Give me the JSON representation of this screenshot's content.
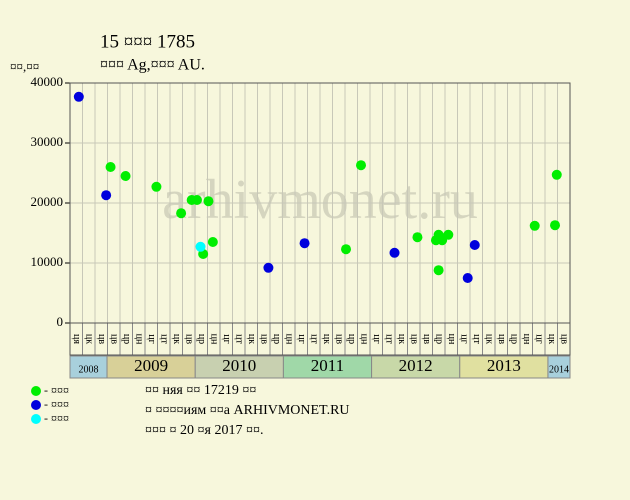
{
  "chart_data": {
    "type": "scatter",
    "title": "15 ¤¤¤ 1785",
    "subtitle": "¤¤¤ Ag,¤¤¤ AU.",
    "y_label": "¤¤,¤¤",
    "watermark": "arhivmonet.ru",
    "xlim": [
      2008.58,
      2014.25
    ],
    "ylim": [
      0,
      40000
    ],
    "yticks": [
      0,
      10000,
      20000,
      30000,
      40000
    ],
    "year_bounds": [
      2009,
      2010,
      2011,
      2012,
      2013,
      2014
    ],
    "year_labels": [
      "2008",
      "2009",
      "2010",
      "2011",
      "2012",
      "2013",
      "2014"
    ],
    "year_colors": [
      "#a8d0dc",
      "#d8d098",
      "#c8d0b0",
      "#a0d8a8",
      "#c8d8a8",
      "#e0e0a0",
      "#a8d0dc"
    ],
    "month_labels": [
      "ця",
      "цк",
      "цв",
      "цв",
      "цр",
      "цн",
      "цг",
      "цт",
      "цк",
      "цв",
      "цр",
      "цн",
      "цг",
      "цт",
      "цк",
      "цв",
      "цр",
      "цн",
      "цг",
      "цт",
      "цк",
      "цв",
      "цр",
      "цн",
      "цг",
      "цт",
      "цк",
      "цв",
      "цв",
      "цр",
      "цн",
      "цг",
      "цт",
      "цк",
      "цв",
      "цр",
      "цн",
      "цг",
      "цк",
      "цв"
    ],
    "grid": true,
    "series": [
      {
        "name": "- ¤¤¤",
        "color": "#00ee00",
        "x": [
          2009.04,
          2009.21,
          2009.56,
          2009.84,
          2009.96,
          2010.02,
          2010.09,
          2010.15,
          2010.2,
          2011.71,
          2011.88,
          2012.52,
          2012.73,
          2012.76,
          2012.76,
          2012.8,
          2012.87,
          2013.85,
          2014.08,
          2014.1
        ],
        "values": [
          26000,
          24500,
          22700,
          18300,
          20500,
          20500,
          11500,
          20300,
          13500,
          12300,
          26300,
          14300,
          13800,
          14700,
          8800,
          13800,
          14700,
          16200,
          16300,
          24700
        ]
      },
      {
        "name": "- ¤¤¤",
        "color": "#0000dd",
        "x": [
          2008.68,
          2008.99,
          2010.83,
          2011.24,
          2012.26,
          2013.09,
          2013.17
        ],
        "values": [
          37700,
          21300,
          9200,
          13300,
          11700,
          7500,
          13000
        ]
      },
      {
        "name": "- ¤¤¤",
        "color": "#00ffff",
        "x": [
          2010.06
        ],
        "values": [
          12700
        ]
      }
    ],
    "notes": [
      "¤¤ няя ¤¤ 17219 ¤¤",
      "¤ ¤¤¤¤иям ¤¤а ARHIVMONET.RU",
      "¤¤¤ ¤ 20 ¤я 2017 ¤¤."
    ]
  }
}
